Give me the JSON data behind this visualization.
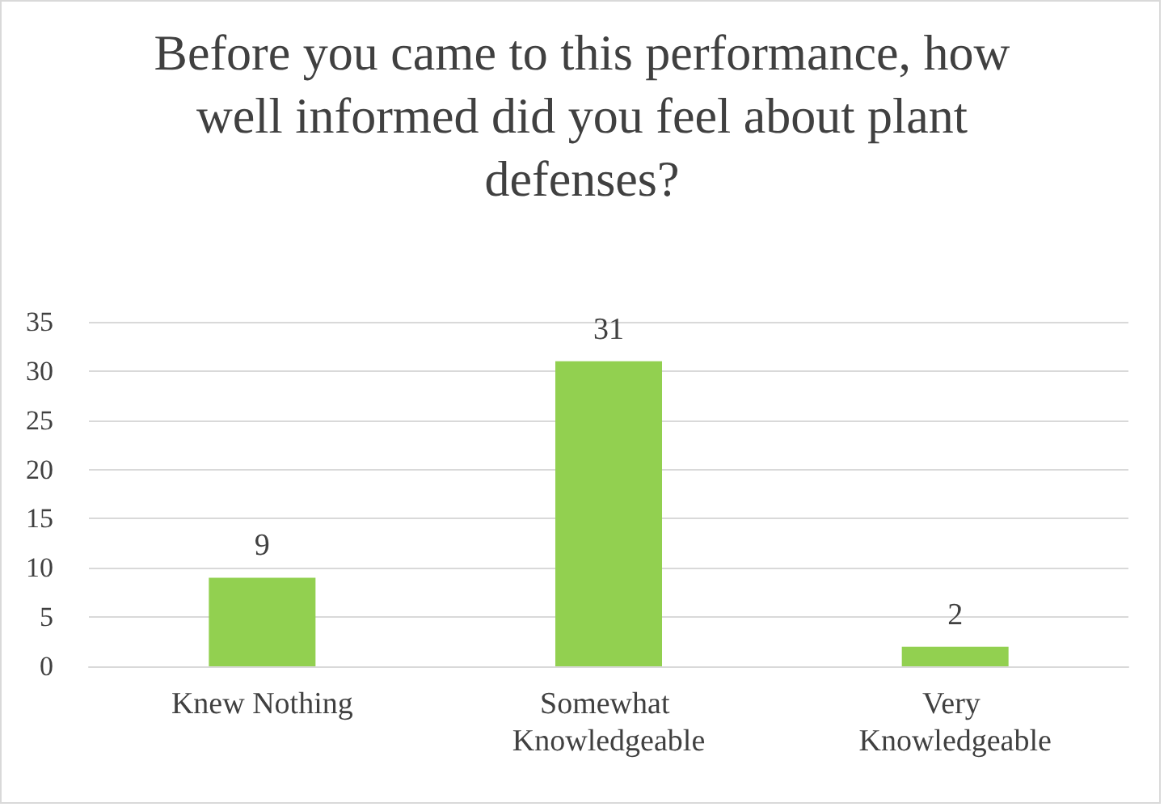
{
  "chart_data": {
    "type": "bar",
    "title": "Before you came to this performance, how well informed did you feel about plant defenses?",
    "categories": [
      "Knew Nothing",
      "Somewhat Knowledgeable",
      "Very Knowledgeable"
    ],
    "values": [
      9,
      31,
      2
    ],
    "color": "#92d050",
    "ylim": [
      0,
      35
    ],
    "yticks": [
      0,
      5,
      10,
      15,
      20,
      25,
      30,
      35
    ],
    "grid": "y",
    "data_labels": true
  }
}
